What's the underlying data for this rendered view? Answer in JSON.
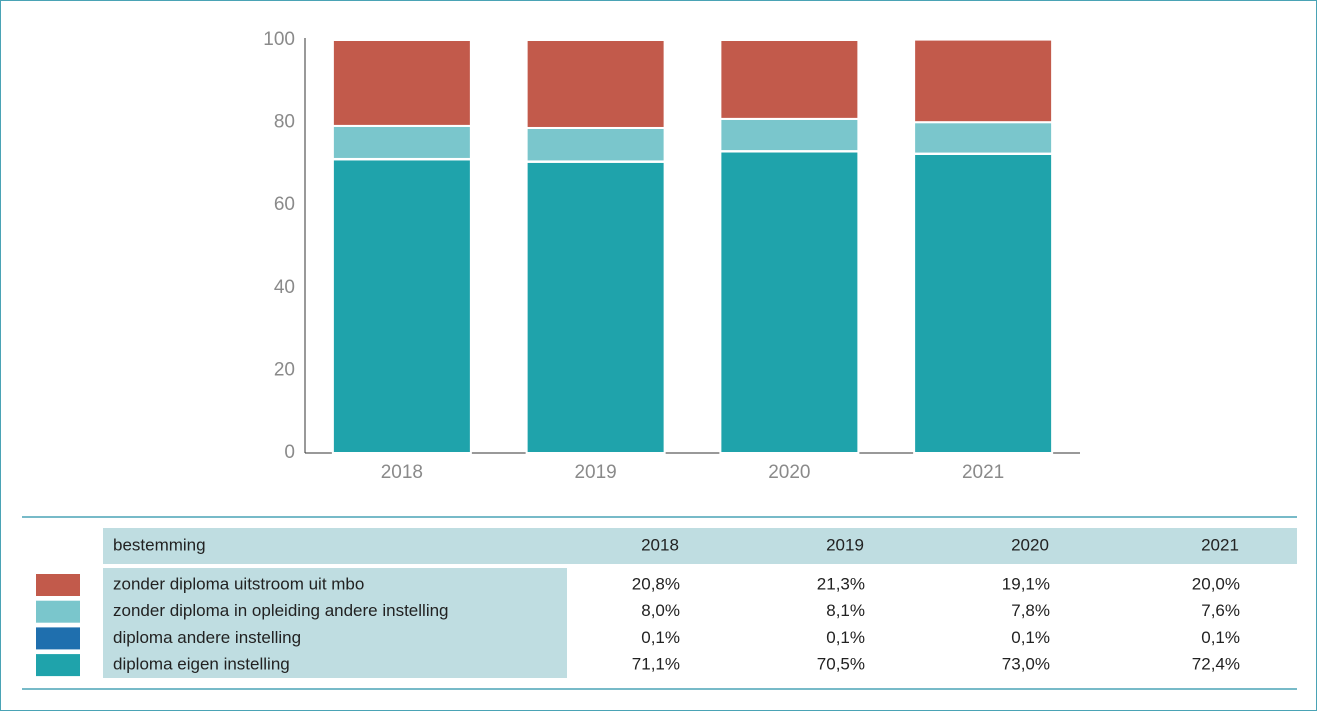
{
  "chart_data": {
    "type": "bar",
    "stacked": true,
    "categories": [
      "2018",
      "2019",
      "2020",
      "2021"
    ],
    "series": [
      {
        "name": "diploma eigen instelling",
        "color": "#1fa3ab",
        "values": [
          71.1,
          70.5,
          73.0,
          72.4
        ],
        "value_labels": [
          "71,1%",
          "70,5%",
          "73,0%",
          "72,4%"
        ]
      },
      {
        "name": "diploma andere instelling",
        "color": "#1f6fae",
        "values": [
          0.1,
          0.1,
          0.1,
          0.1
        ],
        "value_labels": [
          "0,1%",
          "0,1%",
          "0,1%",
          "0,1%"
        ]
      },
      {
        "name": "zonder diploma in opleiding andere instelling",
        "color": "#7ac6cc",
        "values": [
          8.0,
          8.1,
          7.8,
          7.6
        ],
        "value_labels": [
          "8,0%",
          "8,1%",
          "7,8%",
          "7,6%"
        ]
      },
      {
        "name": "zonder diploma uitstroom uit mbo",
        "color": "#c25a4b",
        "values": [
          20.8,
          21.3,
          19.1,
          20.0
        ],
        "value_labels": [
          "20,8%",
          "21,3%",
          "19,1%",
          "20,0%"
        ]
      }
    ],
    "legend_title": "bestemming",
    "ylim": [
      0,
      100
    ],
    "yticks": [
      0,
      20,
      40,
      60,
      80,
      100
    ],
    "grid": false
  }
}
